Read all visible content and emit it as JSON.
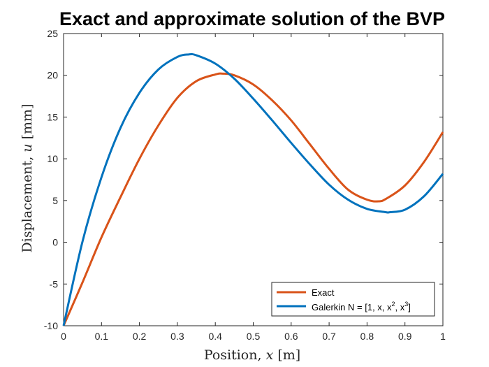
{
  "chart_data": {
    "type": "line",
    "title": "Exact and approximate solution of the BVP",
    "xlabel": {
      "prefix": "Position, ",
      "var": "x",
      "unit": " [m]"
    },
    "ylabel": {
      "prefix": "Displacement, ",
      "var": "u",
      "unit": " [mm]"
    },
    "xlim": [
      0,
      1
    ],
    "ylim": [
      -10,
      25
    ],
    "xticks": [
      0,
      0.1,
      0.2,
      0.3,
      0.4,
      0.5,
      0.6,
      0.7,
      0.8,
      0.9,
      1
    ],
    "yticks": [
      -10,
      -5,
      0,
      5,
      10,
      15,
      20,
      25
    ],
    "grid": false,
    "legend_position": "bottom-right",
    "series": [
      {
        "name": "Exact",
        "color": "#D95319",
        "x": [
          0,
          0.05,
          0.1,
          0.15,
          0.2,
          0.25,
          0.3,
          0.35,
          0.4,
          0.42,
          0.45,
          0.5,
          0.55,
          0.6,
          0.65,
          0.7,
          0.75,
          0.8,
          0.83,
          0.85,
          0.9,
          0.95,
          1
        ],
        "y": [
          -10,
          -4.8,
          0.6,
          5.4,
          10.0,
          14.0,
          17.3,
          19.3,
          20.1,
          20.2,
          20.0,
          18.9,
          17.0,
          14.6,
          11.7,
          8.8,
          6.3,
          5.1,
          4.9,
          5.2,
          6.8,
          9.6,
          13.2
        ]
      },
      {
        "name": "Galerkin N = [1, x, x², x³]",
        "name_parts": [
          "Galerkin N = [1, x, x",
          "2",
          ", x",
          "3",
          "]"
        ],
        "color": "#0072BD",
        "x": [
          0,
          0.05,
          0.1,
          0.15,
          0.2,
          0.25,
          0.3,
          0.33,
          0.35,
          0.4,
          0.45,
          0.5,
          0.55,
          0.6,
          0.65,
          0.7,
          0.75,
          0.8,
          0.85,
          0.86,
          0.9,
          0.95,
          1
        ],
        "y": [
          -10,
          0.1,
          7.8,
          13.7,
          17.9,
          20.7,
          22.2,
          22.5,
          22.4,
          21.4,
          19.6,
          17.2,
          14.6,
          11.9,
          9.3,
          6.9,
          5.1,
          4.0,
          3.6,
          3.6,
          3.9,
          5.5,
          8.2
        ]
      }
    ]
  }
}
